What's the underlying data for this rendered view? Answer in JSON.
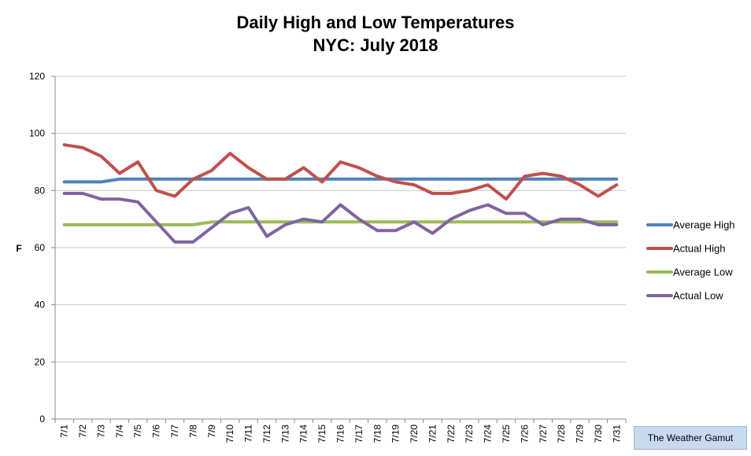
{
  "chart_data": {
    "type": "line",
    "title": "Daily High and Low Temperatures",
    "subtitle": "NYC: July 2018",
    "xlabel": "",
    "ylabel": "F",
    "ylim": [
      0,
      120
    ],
    "yticks": [
      "0",
      "20",
      "40",
      "60",
      "80",
      "100",
      "120"
    ],
    "grid": true,
    "legend_position": "right",
    "categories": [
      "7/1",
      "7/2",
      "7/3",
      "7/4",
      "7/5",
      "7/6",
      "7/7",
      "7/8",
      "7/9",
      "7/10",
      "7/11",
      "7/12",
      "7/13",
      "7/14",
      "7/15",
      "7/16",
      "7/17",
      "7/18",
      "7/19",
      "7/20",
      "7/21",
      "7/22",
      "7/23",
      "7/24",
      "7/25",
      "7/26",
      "7/27",
      "7/28",
      "7/29",
      "7/30",
      "7/31"
    ],
    "series": [
      {
        "name": "Average High",
        "color": "#4f81bd",
        "values": [
          83,
          83,
          83,
          84,
          84,
          84,
          84,
          84,
          84,
          84,
          84,
          84,
          84,
          84,
          84,
          84,
          84,
          84,
          84,
          84,
          84,
          84,
          84,
          84,
          84,
          84,
          84,
          84,
          84,
          84,
          84
        ]
      },
      {
        "name": "Actual High",
        "color": "#c0504d",
        "values": [
          96,
          95,
          92,
          86,
          90,
          80,
          78,
          84,
          87,
          93,
          88,
          84,
          84,
          88,
          83,
          90,
          88,
          85,
          83,
          82,
          79,
          79,
          80,
          82,
          77,
          85,
          86,
          85,
          82,
          78,
          82
        ]
      },
      {
        "name": "Average Low",
        "color": "#9bbb59",
        "values": [
          68,
          68,
          68,
          68,
          68,
          68,
          68,
          68,
          69,
          69,
          69,
          69,
          69,
          69,
          69,
          69,
          69,
          69,
          69,
          69,
          69,
          69,
          69,
          69,
          69,
          69,
          69,
          69,
          69,
          69,
          69
        ]
      },
      {
        "name": "Actual Low",
        "color": "#8064a2",
        "values": [
          79,
          79,
          77,
          77,
          76,
          69,
          62,
          62,
          67,
          72,
          74,
          64,
          68,
          70,
          69,
          75,
          70,
          66,
          66,
          69,
          65,
          70,
          73,
          75,
          72,
          72,
          68,
          70,
          70,
          68,
          68
        ]
      }
    ]
  },
  "source_label": "The Weather Gamut"
}
